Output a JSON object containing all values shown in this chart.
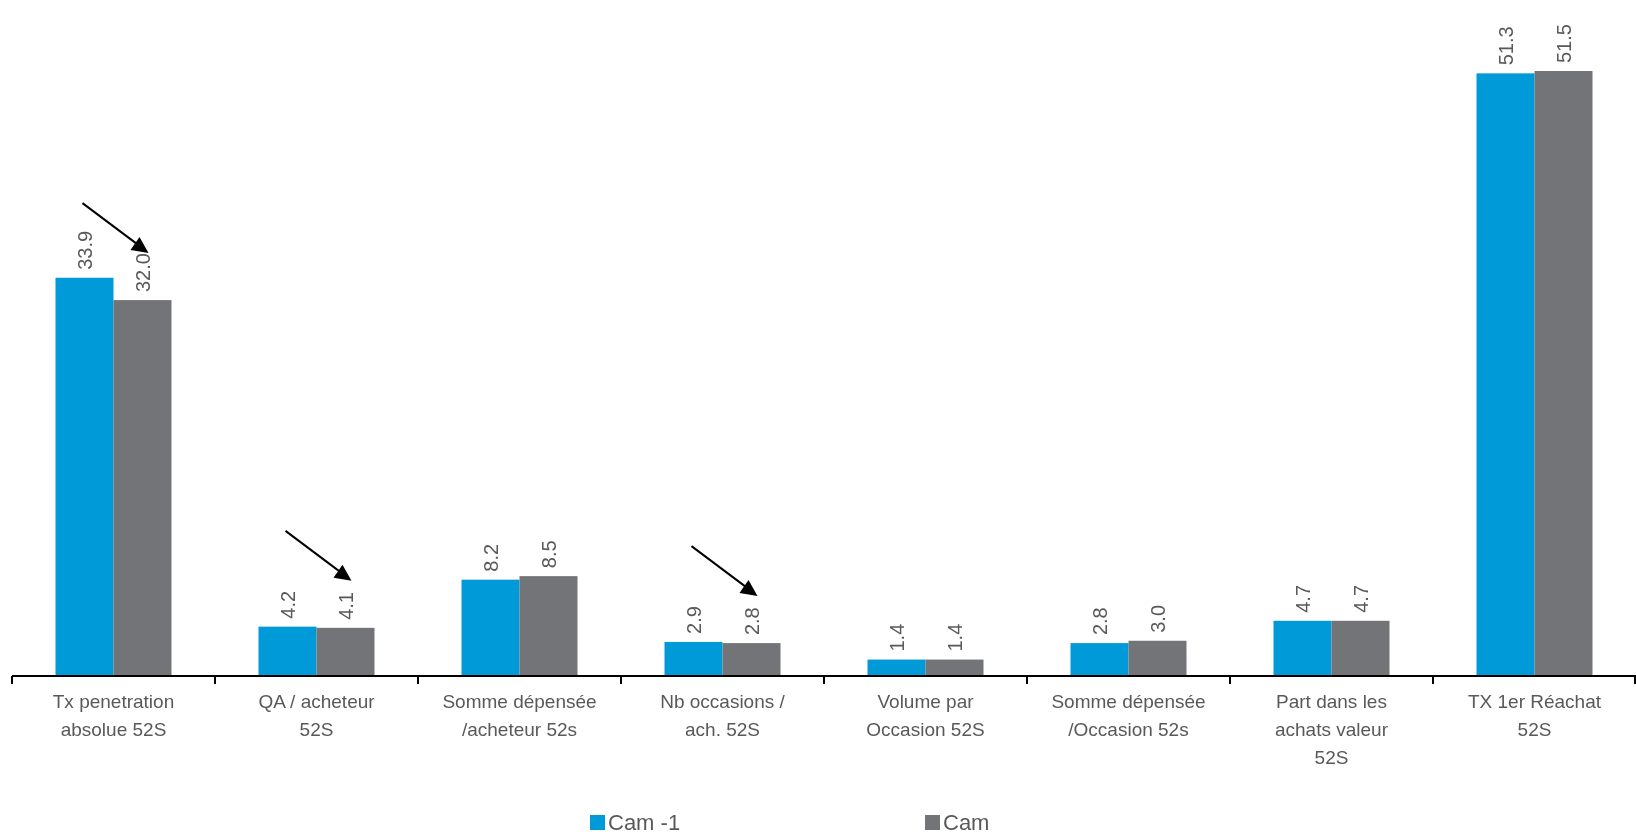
{
  "chart_data": {
    "type": "bar",
    "categories": [
      "Tx penetration absolue 52S",
      "QA / acheteur 52S",
      "Somme dépensée /acheteur 52s",
      "Nb occasions / ach. 52S",
      "Volume par Occasion 52S",
      "Somme dépensée /Occasion 52s",
      "Part dans les achats valeur 52S",
      "TX 1er Réachat 52S"
    ],
    "series": [
      {
        "name": "Cam -1",
        "color": "#009ad8",
        "values": [
          33.9,
          4.2,
          8.2,
          2.9,
          1.4,
          2.8,
          4.7,
          51.3
        ],
        "value_labels": [
          "33.9",
          "4.2",
          "8.2",
          "2.9",
          "1.4",
          "2.8",
          "4.7",
          "51.3"
        ]
      },
      {
        "name": "Cam",
        "color": "#737478",
        "values": [
          32.0,
          4.1,
          8.5,
          2.8,
          1.4,
          3.0,
          4.7,
          51.5
        ],
        "value_labels": [
          "32.0",
          "4.1",
          "8.5",
          "2.8",
          "1.4",
          "3.0",
          "4.7",
          "51.5"
        ]
      }
    ],
    "legend": "bottom",
    "tick_labels": "x"
  }
}
